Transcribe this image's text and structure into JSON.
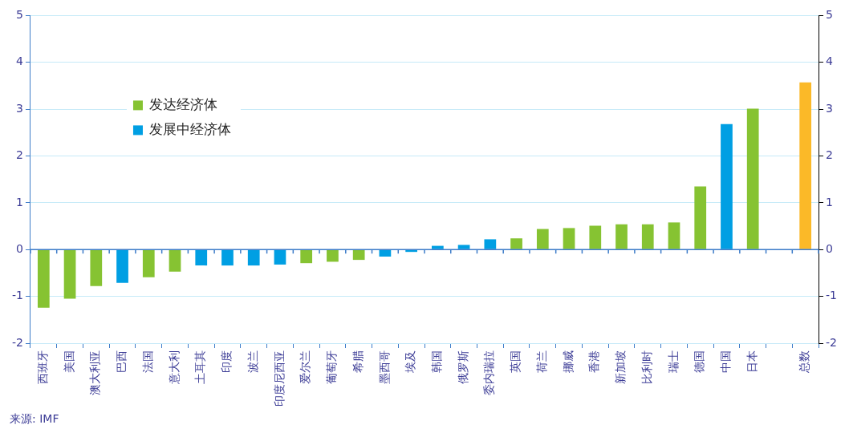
{
  "chart_data": {
    "type": "bar",
    "categories": [
      "西班牙",
      "美国",
      "澳大利亚",
      "巴西",
      "法国",
      "意大利",
      "土耳其",
      "印度",
      "波兰",
      "印度尼西亚",
      "爱尔兰",
      "葡萄牙",
      "希腊",
      "墨西哥",
      "埃及",
      "韩国",
      "俄罗斯",
      "委内瑞拉",
      "英国",
      "荷兰",
      "挪威",
      "香港",
      "新加坡",
      "比利时",
      "瑞士",
      "德国",
      "中国",
      "日本",
      null,
      "总数"
    ],
    "series": [
      {
        "name": "发达经济体",
        "color": "#86c332",
        "values": [
          -1.24,
          -1.05,
          -0.78,
          null,
          -0.59,
          -0.47,
          null,
          null,
          null,
          null,
          -0.29,
          -0.26,
          -0.22,
          null,
          null,
          null,
          null,
          null,
          0.24,
          0.44,
          0.46,
          0.51,
          0.54,
          0.54,
          0.58,
          1.35,
          null,
          3.01,
          null,
          null
        ]
      },
      {
        "name": "发展中经济体",
        "color": "#009fe3",
        "values": [
          null,
          null,
          null,
          -0.71,
          null,
          null,
          -0.34,
          -0.34,
          -0.34,
          -0.32,
          null,
          null,
          null,
          -0.15,
          -0.05,
          0.08,
          0.1,
          0.22,
          null,
          null,
          null,
          null,
          null,
          null,
          null,
          null,
          2.68,
          null,
          null,
          null
        ]
      },
      {
        "color": "#fbb928",
        "values": [
          null,
          null,
          null,
          null,
          null,
          null,
          null,
          null,
          null,
          null,
          null,
          null,
          null,
          null,
          null,
          null,
          null,
          null,
          null,
          null,
          null,
          null,
          null,
          null,
          null,
          null,
          null,
          null,
          null,
          3.57
        ]
      }
    ],
    "ylim": [
      -2,
      5
    ],
    "yticks": [
      -2,
      -1,
      0,
      1,
      2,
      3,
      4,
      5
    ],
    "y2lim": [
      -2,
      5
    ],
    "y2ticks": [
      -2,
      -1,
      0,
      1,
      2,
      3,
      4,
      5
    ],
    "ref_lines": [
      {
        "axis": "y",
        "value": 0,
        "color": "#3d7cc9"
      }
    ],
    "grid": "y",
    "legend": "top left",
    "annotations": [
      "来源: IMF"
    ]
  }
}
